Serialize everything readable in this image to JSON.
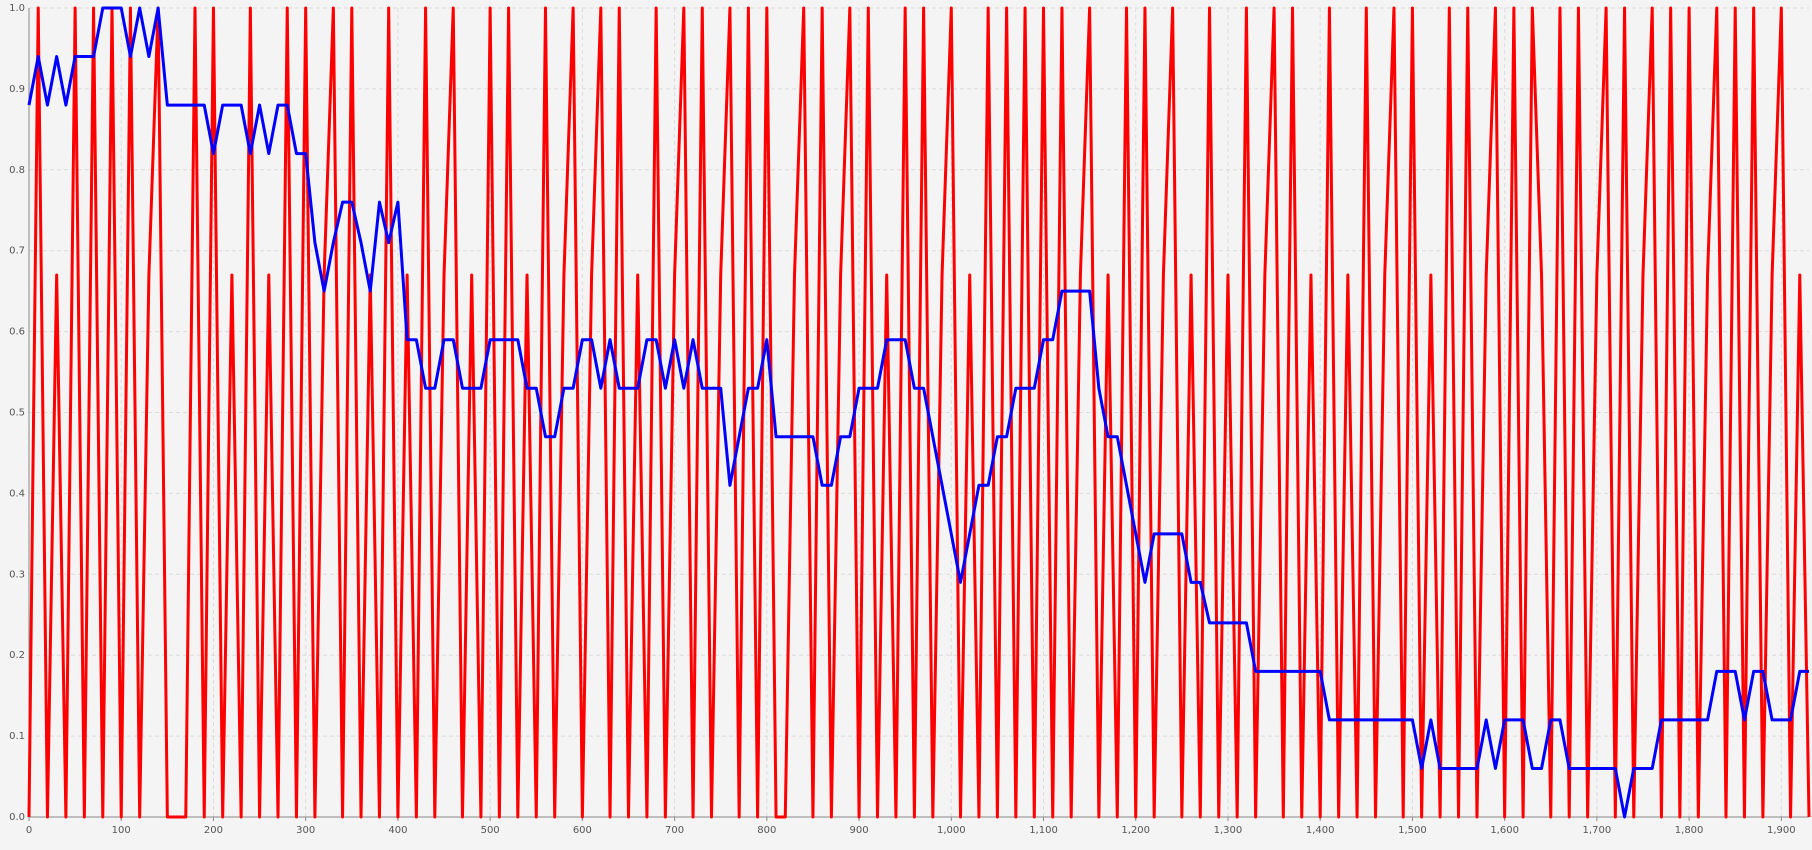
{
  "chart_data": {
    "type": "line",
    "x": [
      0,
      10,
      20,
      30,
      40,
      50,
      60,
      70,
      80,
      90,
      100,
      110,
      120,
      130,
      140,
      150,
      160,
      170,
      180,
      190,
      200,
      210,
      220,
      230,
      240,
      250,
      260,
      270,
      280,
      290,
      300,
      310,
      320,
      330,
      340,
      350,
      360,
      370,
      380,
      390,
      400,
      410,
      420,
      430,
      440,
      450,
      460,
      470,
      480,
      490,
      500,
      510,
      520,
      530,
      540,
      550,
      560,
      570,
      580,
      590,
      600,
      610,
      620,
      630,
      640,
      650,
      660,
      670,
      680,
      690,
      700,
      710,
      720,
      730,
      740,
      750,
      760,
      770,
      780,
      790,
      800,
      810,
      820,
      830,
      840,
      850,
      860,
      870,
      880,
      890,
      900,
      910,
      920,
      930,
      940,
      950,
      960,
      970,
      980,
      990,
      1000,
      1010,
      1020,
      1030,
      1040,
      1050,
      1060,
      1070,
      1080,
      1090,
      1100,
      1110,
      1120,
      1130,
      1140,
      1150,
      1160,
      1170,
      1180,
      1190,
      1200,
      1210,
      1220,
      1230,
      1240,
      1250,
      1260,
      1270,
      1280,
      1290,
      1300,
      1310,
      1320,
      1330,
      1340,
      1350,
      1360,
      1370,
      1380,
      1390,
      1400,
      1410,
      1420,
      1430,
      1440,
      1450,
      1460,
      1470,
      1480,
      1490,
      1500,
      1510,
      1520,
      1530,
      1540,
      1550,
      1560,
      1570,
      1580,
      1590,
      1600,
      1610,
      1620,
      1630,
      1640,
      1650,
      1660,
      1670,
      1680,
      1690,
      1700,
      1710,
      1720,
      1730,
      1740,
      1750,
      1760,
      1770,
      1780,
      1790,
      1800,
      1810,
      1820,
      1830,
      1840,
      1850,
      1860,
      1870,
      1880,
      1890,
      1900,
      1910,
      1920,
      1930
    ],
    "series": [
      {
        "color": "#ff0000",
        "values": [
          0,
          1,
          0,
          0.67,
          0,
          1,
          0,
          1,
          0,
          1,
          0,
          1,
          0,
          0.67,
          1,
          0,
          0,
          0,
          1,
          0,
          1,
          0,
          0.67,
          0,
          1,
          0,
          0.67,
          0,
          1,
          0,
          1,
          0,
          0.67,
          1,
          0,
          1,
          0,
          0.67,
          0,
          1,
          0,
          0.67,
          0,
          1,
          0,
          0.67,
          1,
          0,
          0.67,
          0,
          1,
          0,
          1,
          0,
          0.67,
          0,
          1,
          0,
          0.67,
          1,
          0,
          0.67,
          1,
          0,
          1,
          0,
          0.67,
          0,
          1,
          0,
          0.67,
          1,
          0,
          1,
          0,
          0.67,
          1,
          0,
          1,
          0,
          1,
          0,
          0,
          0.67,
          1,
          0,
          1,
          0,
          0.67,
          1,
          0,
          1,
          0,
          0.67,
          0,
          1,
          0,
          1,
          0,
          0.67,
          1,
          0,
          0.67,
          0,
          1,
          0,
          1,
          0,
          1,
          0,
          1,
          0,
          1,
          0,
          0.67,
          1,
          0,
          0.67,
          0,
          1,
          0,
          1,
          0,
          0.67,
          1,
          0,
          0.67,
          0,
          1,
          0,
          0.67,
          0,
          1,
          0,
          0.67,
          1,
          0,
          1,
          0,
          0.67,
          0,
          1,
          0,
          0.67,
          0,
          1,
          0,
          0.67,
          1,
          0,
          1,
          0,
          0.67,
          0,
          1,
          0,
          1,
          0,
          0.67,
          1,
          0,
          1,
          0,
          1,
          0.67,
          0,
          1,
          0,
          1,
          0,
          0.67,
          1,
          0,
          1,
          0,
          0.67,
          1,
          0,
          1,
          0,
          1,
          0,
          0.67,
          1,
          0,
          1,
          0,
          1,
          0,
          0.67,
          1,
          0,
          0.67,
          0
        ]
      },
      {
        "color": "#0000ff",
        "values": [
          0.88,
          0.94,
          0.88,
          0.94,
          0.88,
          0.94,
          0.94,
          0.94,
          1,
          1,
          1,
          0.94,
          1,
          0.94,
          1,
          0.88,
          0.88,
          0.88,
          0.88,
          0.88,
          0.82,
          0.88,
          0.88,
          0.88,
          0.82,
          0.88,
          0.82,
          0.88,
          0.88,
          0.82,
          0.82,
          0.71,
          0.65,
          0.71,
          0.76,
          0.76,
          0.71,
          0.65,
          0.76,
          0.71,
          0.76,
          0.59,
          0.59,
          0.53,
          0.53,
          0.59,
          0.59,
          0.53,
          0.53,
          0.53,
          0.59,
          0.59,
          0.59,
          0.59,
          0.53,
          0.53,
          0.47,
          0.47,
          0.53,
          0.53,
          0.59,
          0.59,
          0.53,
          0.59,
          0.53,
          0.53,
          0.53,
          0.59,
          0.59,
          0.53,
          0.59,
          0.53,
          0.59,
          0.53,
          0.53,
          0.53,
          0.41,
          0.47,
          0.53,
          0.53,
          0.59,
          0.47,
          0.47,
          0.47,
          0.47,
          0.47,
          0.41,
          0.41,
          0.47,
          0.47,
          0.53,
          0.53,
          0.53,
          0.59,
          0.59,
          0.59,
          0.53,
          0.53,
          0.47,
          0.41,
          0.35,
          0.29,
          0.35,
          0.41,
          0.41,
          0.47,
          0.47,
          0.53,
          0.53,
          0.53,
          0.59,
          0.59,
          0.65,
          0.65,
          0.65,
          0.65,
          0.53,
          0.47,
          0.47,
          0.41,
          0.35,
          0.29,
          0.35,
          0.35,
          0.35,
          0.35,
          0.29,
          0.29,
          0.24,
          0.24,
          0.24,
          0.24,
          0.24,
          0.18,
          0.18,
          0.18,
          0.18,
          0.18,
          0.18,
          0.18,
          0.18,
          0.12,
          0.12,
          0.12,
          0.12,
          0.12,
          0.12,
          0.12,
          0.12,
          0.12,
          0.12,
          0.06,
          0.12,
          0.06,
          0.06,
          0.06,
          0.06,
          0.06,
          0.12,
          0.06,
          0.12,
          0.12,
          0.12,
          0.06,
          0.06,
          0.12,
          0.12,
          0.06,
          0.06,
          0.06,
          0.06,
          0.06,
          0.06,
          0,
          0.06,
          0.06,
          0.06,
          0.12,
          0.12,
          0.12,
          0.12,
          0.12,
          0.12,
          0.18,
          0.18,
          0.18,
          0.12,
          0.18,
          0.18,
          0.12,
          0.12,
          0.12,
          0.18,
          0.18
        ]
      }
    ],
    "xlim": [
      0,
      1930
    ],
    "xticks": [
      0,
      100,
      200,
      300,
      400,
      500,
      600,
      700,
      800,
      900,
      {
        "value": 1000,
        "label": "1,000"
      },
      {
        "value": 1100,
        "label": "1,100"
      },
      {
        "value": 1200,
        "label": "1,200"
      },
      {
        "value": 1300,
        "label": "1,300"
      },
      {
        "value": 1400,
        "label": "1,400"
      },
      {
        "value": 1500,
        "label": "1,500"
      },
      {
        "value": 1600,
        "label": "1,600"
      },
      {
        "value": 1700,
        "label": "1,700"
      },
      {
        "value": 1800,
        "label": "1,800"
      },
      {
        "value": 1900,
        "label": "1,900"
      }
    ],
    "ylim": [
      0,
      1
    ],
    "yticks": [
      {
        "value": 0,
        "label": "0.0"
      },
      0.1,
      0.2,
      0.3,
      0.4,
      0.5,
      0.6,
      0.7,
      0.8,
      0.9,
      {
        "value": 1,
        "label": "1.0"
      }
    ],
    "grid": true
  }
}
